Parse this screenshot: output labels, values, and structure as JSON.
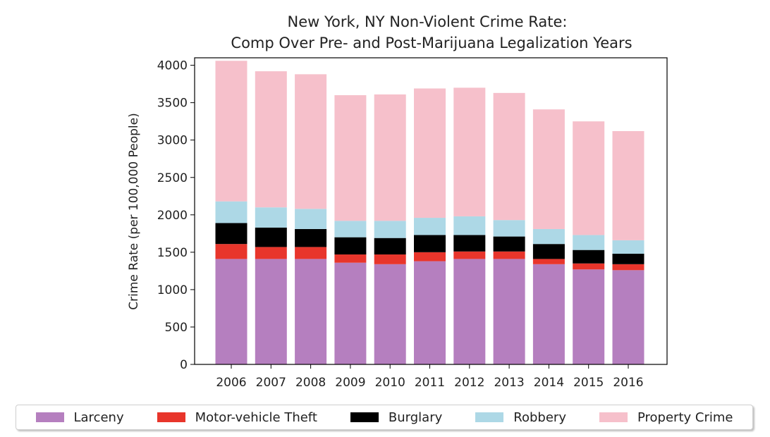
{
  "chart_data": {
    "type": "bar",
    "stacked": true,
    "title": "New York, NY Non-Violent Crime Rate:",
    "subtitle": "Comp Over Pre- and Post-Marijuana Legalization Years",
    "xlabel": "",
    "ylabel": "Crime Rate (per 100,000 People)",
    "ylim": [
      0,
      4100
    ],
    "yticks": [
      "0",
      "500",
      "1000",
      "1500",
      "2000",
      "2500",
      "3000",
      "3500",
      "4000"
    ],
    "ytick_values": [
      0,
      500,
      1000,
      1500,
      2000,
      2500,
      3000,
      3500,
      4000
    ],
    "grid": false,
    "legend_position": "bottom",
    "categories": [
      "2006",
      "2007",
      "2008",
      "2009",
      "2010",
      "2011",
      "2012",
      "2013",
      "2014",
      "2015",
      "2016"
    ],
    "series": [
      {
        "name": "Larceny",
        "color": "#b57fbf",
        "values": [
          1410,
          1410,
          1410,
          1360,
          1340,
          1380,
          1410,
          1410,
          1340,
          1270,
          1260
        ]
      },
      {
        "name": "Motor-vehicle Theft",
        "color": "#e8352b",
        "values": [
          200,
          160,
          160,
          110,
          130,
          120,
          100,
          100,
          70,
          80,
          80
        ]
      },
      {
        "name": "Burglary",
        "color": "#000000",
        "values": [
          280,
          260,
          240,
          230,
          220,
          230,
          220,
          200,
          200,
          180,
          140
        ]
      },
      {
        "name": "Robbery",
        "color": "#add8e6",
        "values": [
          290,
          270,
          270,
          220,
          230,
          230,
          250,
          220,
          200,
          200,
          180
        ]
      },
      {
        "name": "Property Crime",
        "color": "#f6c0cb",
        "values": [
          1880,
          1820,
          1800,
          1680,
          1690,
          1730,
          1720,
          1700,
          1600,
          1520,
          1460
        ]
      }
    ]
  }
}
